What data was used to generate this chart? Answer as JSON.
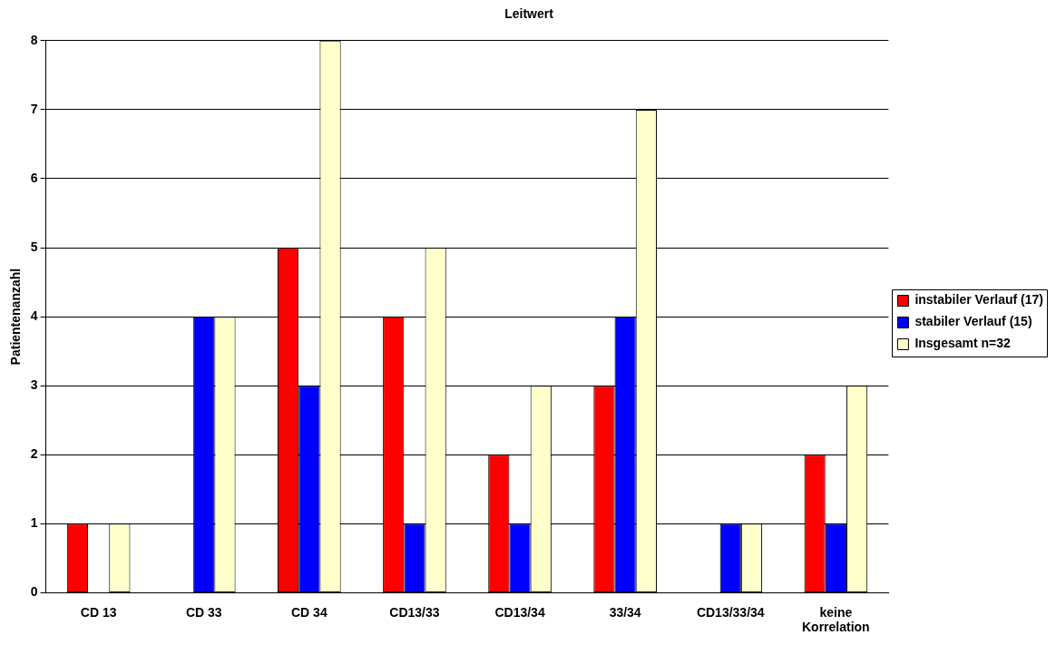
{
  "chart_data": {
    "type": "bar",
    "title": "Leitwert",
    "ylabel": "Patientenanzahl",
    "categories": [
      "CD 13",
      "CD 33",
      "CD 34",
      "CD13/33",
      "CD13/34",
      "33/34",
      "CD13/33/34",
      "keine Korrelation"
    ],
    "series": [
      {
        "name": "instabiler Verlauf (17)",
        "color": "#ff0000",
        "values": [
          1,
          0,
          5,
          4,
          2,
          3,
          0,
          2
        ]
      },
      {
        "name": "stabiler Verlauf (15)",
        "color": "#0000ff",
        "values": [
          0,
          4,
          3,
          1,
          1,
          4,
          1,
          1
        ]
      },
      {
        "name": "Insgesamt n=32",
        "color": "#ffffcc",
        "values": [
          1,
          4,
          8,
          5,
          3,
          7,
          1,
          3
        ]
      }
    ],
    "ylim": [
      0,
      8
    ],
    "yticks": [
      0,
      1,
      2,
      3,
      4,
      5,
      6,
      7,
      8
    ],
    "grid": "y",
    "legend": "right"
  }
}
